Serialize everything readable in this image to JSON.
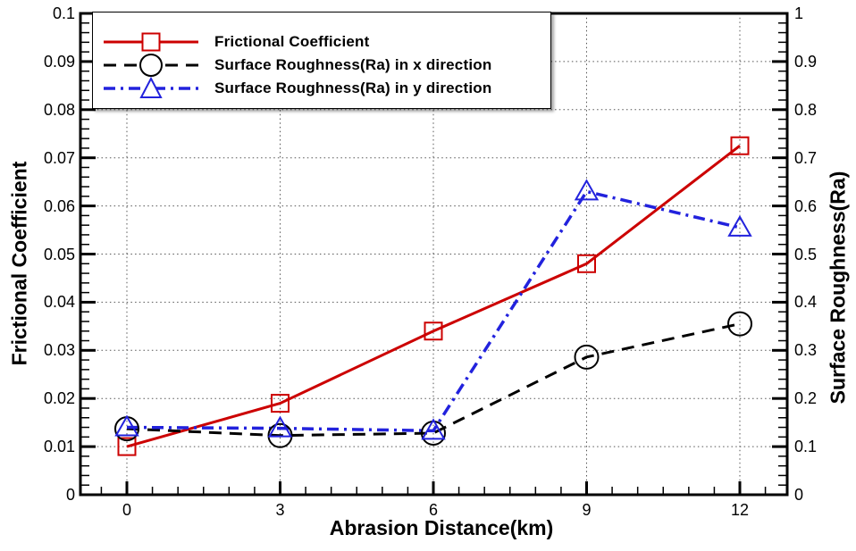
{
  "chart_data": {
    "type": "line",
    "title": "",
    "xlabel": "Abrasion Distance(km)",
    "ylabel_left": "Frictional Coefficient",
    "ylabel_right": "Surface Roughness(Ra)",
    "x": [
      0,
      3,
      6,
      9,
      12
    ],
    "x_tick_labels": [
      "0",
      "3",
      "6",
      "9",
      "12"
    ],
    "y_left_tick_labels": [
      "0",
      "0.01",
      "0.02",
      "0.03",
      "0.04",
      "0.05",
      "0.06",
      "0.07",
      "0.08",
      "0.09",
      "0.1"
    ],
    "y_right_tick_labels": [
      "0",
      "0.1",
      "0.2",
      "0.3",
      "0.4",
      "0.5",
      "0.6",
      "0.7",
      "0.8",
      "0.9",
      "1"
    ],
    "ylim_left": [
      0,
      0.1
    ],
    "ylim_right": [
      0,
      1
    ],
    "x_minor_step": 0.5,
    "y_left_minor_step": 0.002,
    "grid": "dotted",
    "grid_color": "#555555",
    "legend_position": "top-left",
    "series": [
      {
        "name": "Frictional Coefficient",
        "axis": "left",
        "color": "#cc0000",
        "line": "solid",
        "marker": "square",
        "values": [
          0.01,
          0.019,
          0.034,
          0.048,
          0.0725
        ]
      },
      {
        "name": "Surface Roughness(Ra) in x direction",
        "axis": "right",
        "color": "#000000",
        "line": "dashed",
        "marker": "circle",
        "values": [
          0.137,
          0.123,
          0.128,
          0.286,
          0.355
        ]
      },
      {
        "name": "Surface Roughness(Ra) in y direction",
        "axis": "right",
        "color": "#2222dd",
        "line": "dashdot",
        "marker": "triangle",
        "values": [
          0.14,
          0.138,
          0.133,
          0.63,
          0.555
        ]
      }
    ]
  }
}
